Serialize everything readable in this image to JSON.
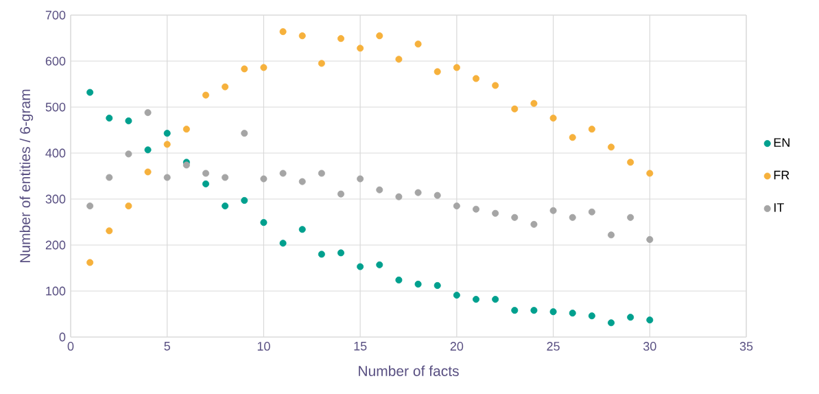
{
  "chart_data": {
    "type": "scatter",
    "xlabel": "Number of facts",
    "ylabel": "Number of entities / 6-gram",
    "x": [
      1,
      2,
      3,
      4,
      5,
      6,
      7,
      8,
      9,
      10,
      11,
      12,
      13,
      14,
      15,
      16,
      17,
      18,
      19,
      20,
      21,
      22,
      23,
      24,
      25,
      26,
      27,
      28,
      29,
      30
    ],
    "series": [
      {
        "name": "EN",
        "color": "#00a08e",
        "values": [
          532,
          476,
          470,
          407,
          443,
          380,
          333,
          285,
          297,
          249,
          204,
          234,
          180,
          183,
          153,
          157,
          124,
          115,
          112,
          91,
          82,
          82,
          58,
          58,
          55,
          52,
          46,
          31,
          43,
          37
        ]
      },
      {
        "name": "FR",
        "color": "#f6b13c",
        "values": [
          162,
          231,
          285,
          359,
          419,
          452,
          526,
          544,
          583,
          586,
          664,
          655,
          595,
          649,
          628,
          655,
          604,
          637,
          577,
          586,
          562,
          547,
          496,
          508,
          476,
          434,
          452,
          413,
          380,
          356
        ]
      },
      {
        "name": "IT",
        "color": "#a5a5a5",
        "values": [
          285,
          347,
          398,
          488,
          347,
          374,
          356,
          347,
          443,
          344,
          356,
          338,
          356,
          311,
          344,
          320,
          305,
          314,
          308,
          285,
          278,
          269,
          260,
          245,
          275,
          260,
          272,
          222,
          260,
          212
        ]
      }
    ],
    "xlim": [
      0,
      35
    ],
    "xticks": [
      0,
      5,
      10,
      15,
      20,
      25,
      30,
      35
    ],
    "ylim": [
      0,
      700
    ],
    "yticks": [
      0,
      100,
      200,
      300,
      400,
      500,
      600,
      700
    ],
    "grid": true,
    "legend": "right",
    "marker": "circle"
  }
}
